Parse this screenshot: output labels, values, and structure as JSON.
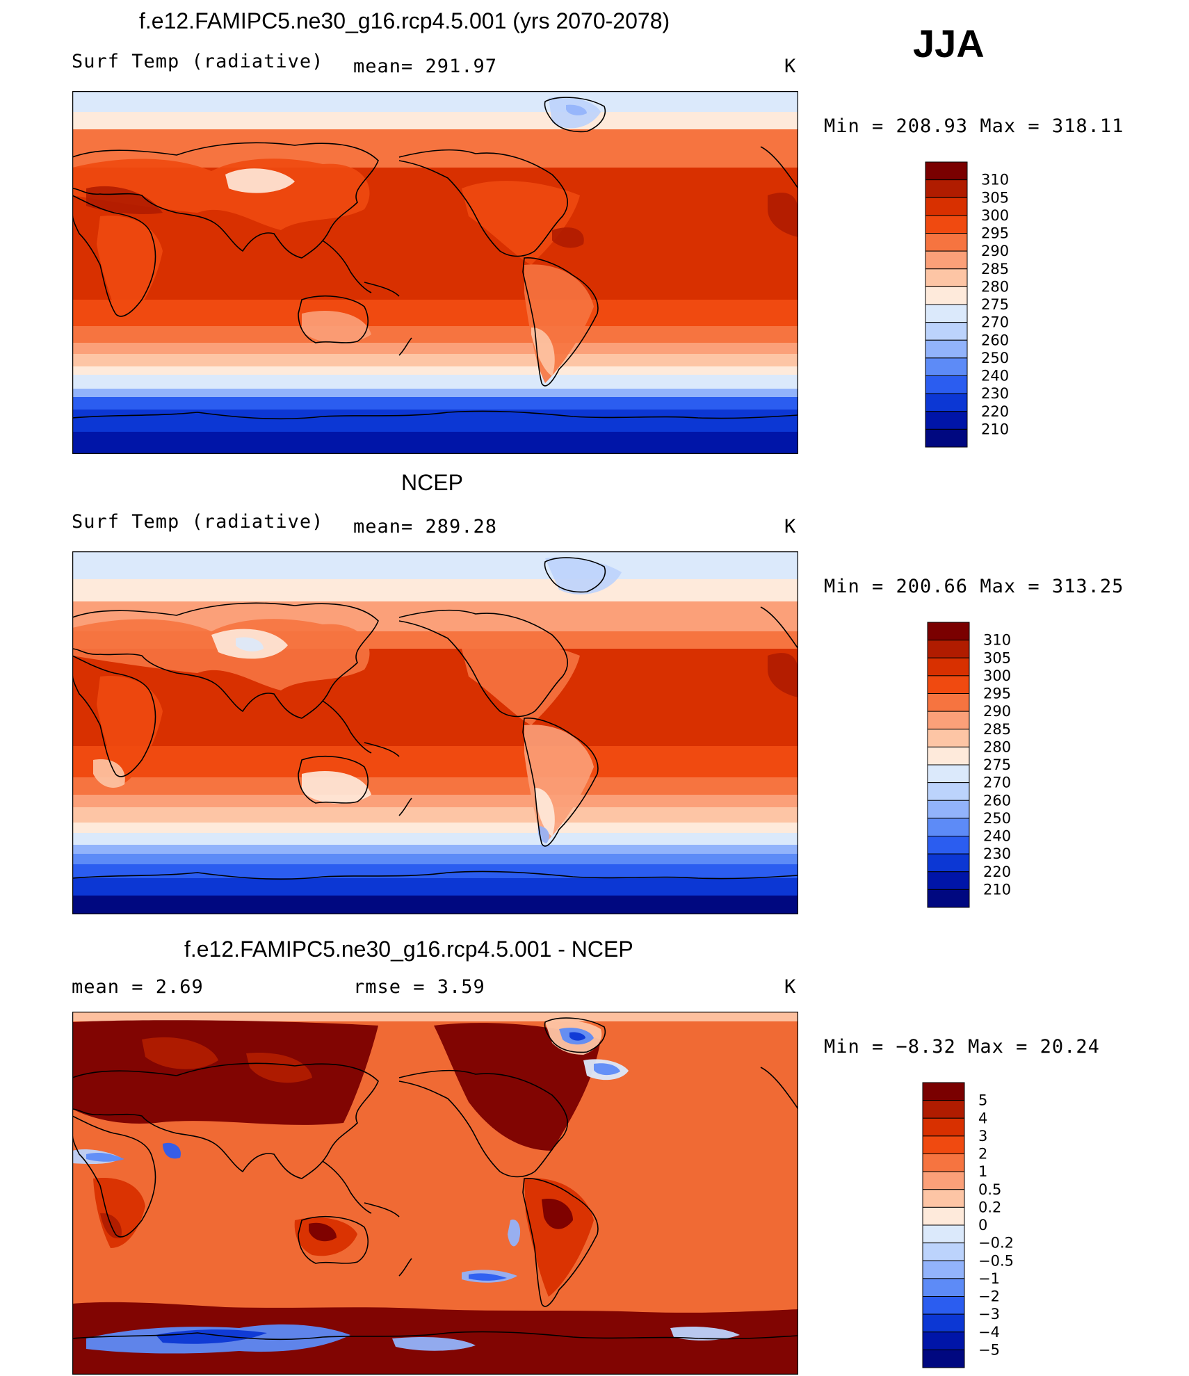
{
  "season": "JJA",
  "panels": [
    {
      "id": "model",
      "title": "f.e12.FAMIPC5.ne30_g16.rcp4.5.001 (yrs 2070-2078)",
      "left_label": "Surf Temp (radiative)",
      "center_label": "mean= 291.97",
      "units": "K",
      "minmax": "Min  =  208.93  Max  =  318.11",
      "colorbar": {
        "labels": [
          "310",
          "305",
          "300",
          "295",
          "290",
          "285",
          "280",
          "275",
          "270",
          "260",
          "250",
          "240",
          "230",
          "220",
          "210"
        ],
        "colors": [
          "#7a0000",
          "#b01c00",
          "#d83000",
          "#f04a10",
          "#f67440",
          "#fba079",
          "#fdc5a5",
          "#feeadb",
          "#dbe9fb",
          "#bcd3fc",
          "#92b3fb",
          "#5d8bf7",
          "#2b5df0",
          "#0c37d4",
          "#0015a8",
          "#000880"
        ]
      }
    },
    {
      "id": "obs",
      "title": "NCEP",
      "left_label": "Surf Temp (radiative)",
      "center_label": "mean= 289.28",
      "units": "K",
      "minmax": "Min  =  200.66  Max  =  313.25",
      "colorbar": {
        "labels": [
          "310",
          "305",
          "300",
          "295",
          "290",
          "285",
          "280",
          "275",
          "270",
          "260",
          "250",
          "240",
          "230",
          "220",
          "210"
        ],
        "colors": [
          "#7a0000",
          "#b01c00",
          "#d83000",
          "#f04a10",
          "#f67440",
          "#fba079",
          "#fdc5a5",
          "#feeadb",
          "#dbe9fb",
          "#bcd3fc",
          "#92b3fb",
          "#5d8bf7",
          "#2b5df0",
          "#0c37d4",
          "#0015a8",
          "#000880"
        ]
      }
    },
    {
      "id": "diff",
      "title": "f.e12.FAMIPC5.ne30_g16.rcp4.5.001 - NCEP",
      "left_label": "mean  =     2.69",
      "center_label": "rmse  =     3.59",
      "units": "K",
      "minmax": "Min  =   −8.32  Max  =   20.24",
      "colorbar": {
        "labels": [
          "5",
          "4",
          "3",
          "2",
          "1",
          "0.5",
          "0.2",
          "0",
          "−0.2",
          "−0.5",
          "−1",
          "−2",
          "−3",
          "−4",
          "−5"
        ],
        "colors": [
          "#7a0000",
          "#b01c00",
          "#d83000",
          "#f04a10",
          "#f67440",
          "#fba079",
          "#fdc5a5",
          "#feeadb",
          "#dbe9fb",
          "#bcd3fc",
          "#92b3fb",
          "#5d8bf7",
          "#2b5df0",
          "#0c37d4",
          "#0015a8",
          "#000880"
        ]
      }
    }
  ]
}
